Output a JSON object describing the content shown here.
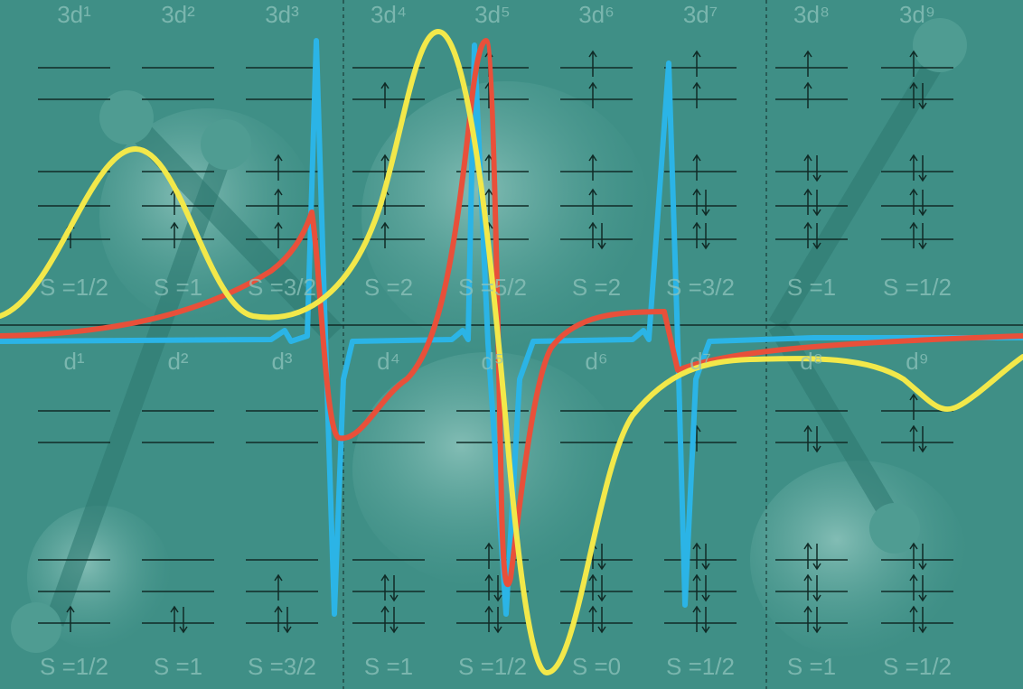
{
  "top_row": {
    "labels": [
      "3d¹",
      "3d²",
      "3d³",
      "3d⁴",
      "3d⁵",
      "3d⁶",
      "3d⁷",
      "3d⁸",
      "3d⁹"
    ],
    "spins": [
      "S =1/2",
      "S =1",
      "S =3/2",
      "S =2",
      "S =5/2",
      "S =2",
      "S =3/2",
      "S =1",
      "S =1/2"
    ]
  },
  "bottom_row": {
    "labels": [
      "d¹",
      "d²",
      "d³",
      "d⁴",
      "d⁵",
      "d⁶",
      "d⁷",
      "d⁸",
      "d⁹"
    ],
    "spins": [
      "S =1/2",
      "S =1",
      "S =3/2",
      "S =1",
      "S =1/2",
      "S =0",
      "S =1/2",
      "S =1",
      "S =1/2"
    ]
  }
}
